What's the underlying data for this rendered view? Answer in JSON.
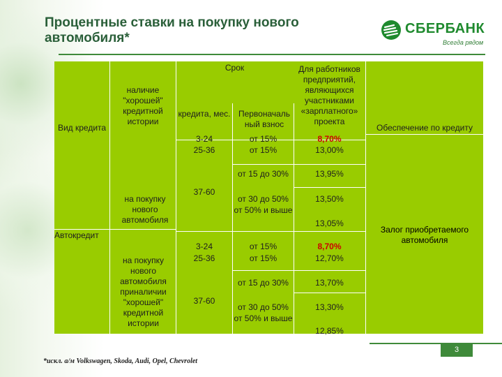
{
  "title": "Процентные ставки на покупку нового автомобиля*",
  "logo": {
    "name": "СБЕРБАНК",
    "slogan": "Всегда рядом",
    "brand_color": "#1f8a2e"
  },
  "colors": {
    "table_green": "#99cc00",
    "accent_red": "#cc0000",
    "title_green": "#2a5f39"
  },
  "header": {
    "loan_type": "Вид кредита",
    "good_history": "наличие \"хорошей\" кредитной истории",
    "term_top": "Срок",
    "term_bottom": "кредита, мес.",
    "down_payment": "Первоначаль ный взнос",
    "employees": "Для работников предприятий, являющихся участниками «зарплатного» проекта",
    "collateral": "Обеспечение по кредиту"
  },
  "row_top": {
    "terms": [
      "3-24",
      "25-36"
    ],
    "payments": [
      "от 15%",
      "от 15%"
    ],
    "rates": [
      "8,70%",
      "13,00%"
    ]
  },
  "row_labels": {
    "loan": "Автокредит",
    "group1": "на покупку нового автомобиля",
    "group2": "на покупку нового автомобиля приналичии \"хорошей\" кредитной истории",
    "collateral": "Залог приобретаемого автомобиля"
  },
  "group1": {
    "term": "37-60",
    "payments": [
      "от 15 до 30%",
      "от 30 до 50%",
      "от 50% и выше"
    ],
    "rates": [
      "13,95%",
      "13,50%",
      "13,05%"
    ]
  },
  "group2": {
    "terms": [
      "3-24",
      "25-36"
    ],
    "payments": [
      "от 15%",
      "от 15%"
    ],
    "rates": [
      "8,70%",
      "12,70%"
    ],
    "term_long": "37-60",
    "payments_long": [
      "от 15 до 30%",
      "от 30 до 50%",
      "от 50% и выше"
    ],
    "rates_long": [
      "13,70%",
      "13,30%",
      "12,85%"
    ]
  },
  "page_number": "3",
  "footnote": "*искл. а/м Volkswagen, Skoda, Audi, Opel, Chevrolet"
}
